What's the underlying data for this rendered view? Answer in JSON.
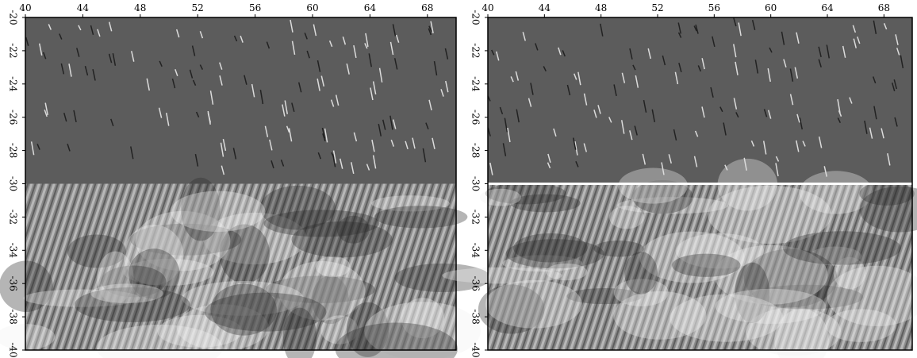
{
  "chart_data": [
    {
      "type": "image",
      "xlim": [
        40,
        70
      ],
      "ylim": [
        -20,
        -40
      ],
      "xticks": [
        40,
        44,
        48,
        52,
        56,
        60,
        64,
        68
      ],
      "yticks": [
        -20,
        -22,
        -24,
        -26,
        -28,
        -30,
        -32,
        -34,
        -36,
        -38,
        -40
      ]
    },
    {
      "type": "image",
      "xlim": [
        40,
        70
      ],
      "ylim": [
        -20,
        -40
      ],
      "xticks": [
        40,
        44,
        48,
        52,
        56,
        60,
        64,
        68
      ],
      "yticks": [
        -20,
        -22,
        -24,
        -26,
        -28,
        -30,
        -32,
        -34,
        -36,
        -38,
        -40
      ]
    }
  ]
}
